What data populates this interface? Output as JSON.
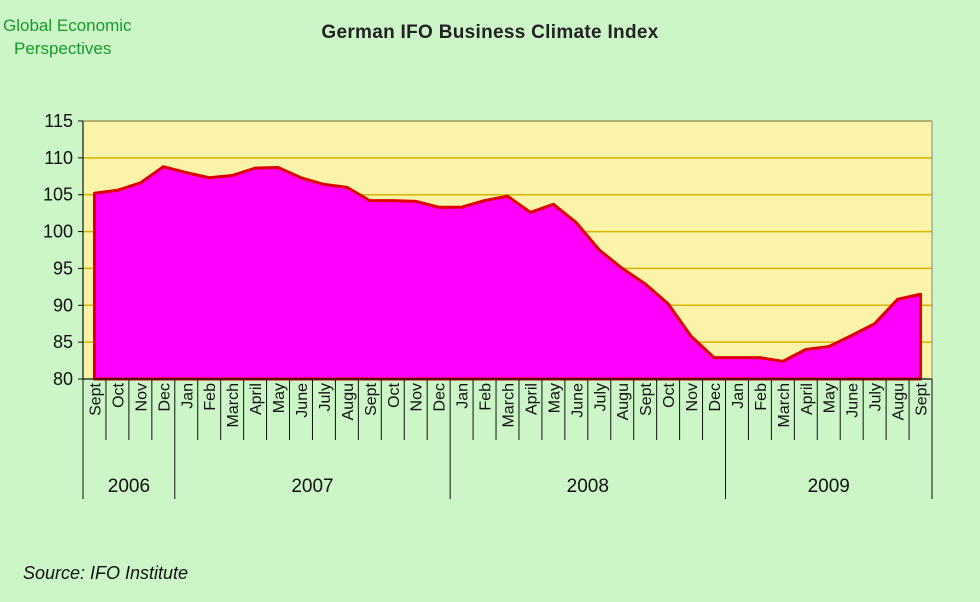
{
  "logo": {
    "line1": "Global Economic",
    "line2": "Perspectives"
  },
  "source": "Source: IFO Institute",
  "colors": {
    "background": "#ccf5c8",
    "plot_area": "#fbf3a8",
    "gridline": "#d8b400",
    "area_fill": "#ff00ff",
    "area_stroke": "#dd0000"
  },
  "chart_data": {
    "type": "area",
    "title": "German IFO Business Climate  Index",
    "xlabel": "",
    "ylabel": "",
    "ylim": [
      80,
      115
    ],
    "yticks": [
      80,
      85,
      90,
      95,
      100,
      105,
      110,
      115
    ],
    "grid": true,
    "x": [
      "Sept",
      "Oct",
      "Nov",
      "Dec",
      "Jan",
      "Feb",
      "March",
      "April",
      "May",
      "June",
      "July",
      "Augu",
      "Sept",
      "Oct",
      "Nov",
      "Dec",
      "Jan",
      "Feb",
      "March",
      "April",
      "May",
      "June",
      "July",
      "Augu",
      "Sept",
      "Oct",
      "Nov",
      "Dec",
      "Jan",
      "Feb",
      "March",
      "April",
      "May",
      "June",
      "July",
      "Augu",
      "Sept"
    ],
    "years": [
      {
        "label": "2006",
        "start": 0,
        "end": 3
      },
      {
        "label": "2007",
        "start": 4,
        "end": 15
      },
      {
        "label": "2008",
        "start": 16,
        "end": 27
      },
      {
        "label": "2009",
        "start": 28,
        "end": 36
      }
    ],
    "series": [
      {
        "values": [
          105.2,
          105.6,
          106.6,
          108.8,
          108.0,
          107.3,
          107.6,
          108.6,
          108.7,
          107.3,
          106.4,
          106.0,
          104.2,
          104.2,
          104.1,
          103.3,
          103.3,
          104.2,
          104.8,
          102.6,
          103.7,
          101.2,
          97.5,
          95.0,
          92.9,
          90.2,
          85.8,
          82.9,
          82.9,
          82.9,
          82.4,
          84.0,
          84.4,
          85.9,
          87.5,
          90.8,
          91.5
        ]
      }
    ]
  }
}
